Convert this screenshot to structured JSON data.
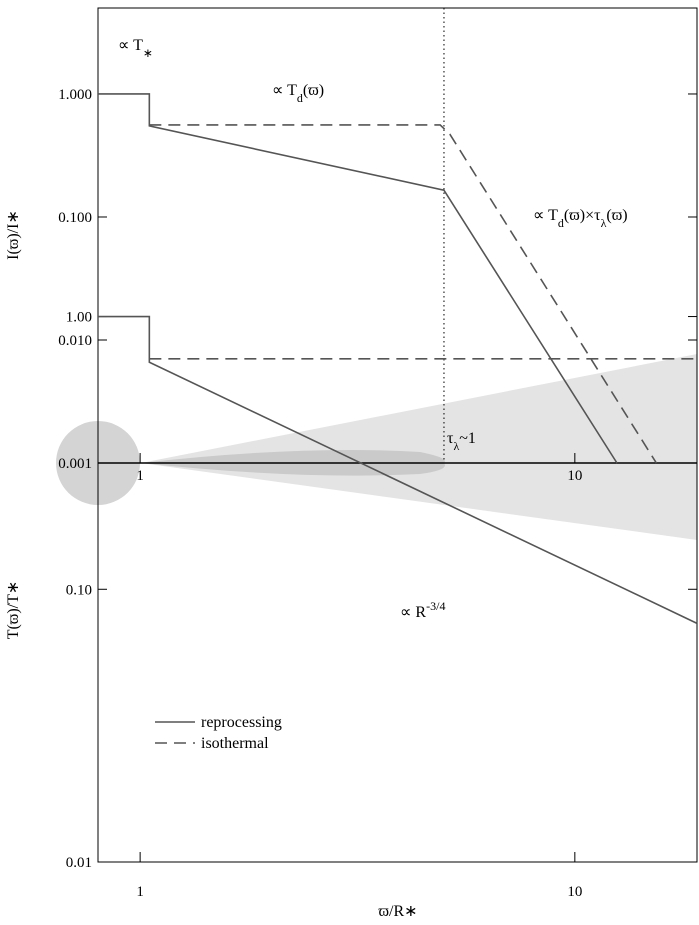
{
  "chart_data": [
    {
      "type": "line",
      "ylabel": "I(ϖ)/I∗",
      "xscale": "log",
      "yscale": "log",
      "xlim": [
        0.8,
        19.1
      ],
      "ylim": [
        0.001,
        5
      ],
      "xticks": [
        1,
        10
      ],
      "yticks": [
        {
          "value": 1,
          "label": "1.000"
        },
        {
          "value": 0.1,
          "label": "0.100"
        },
        {
          "value": 0.01,
          "label": "0.010"
        },
        {
          "value": 0.001,
          "label": "0.001"
        }
      ],
      "vlines": [
        5
      ],
      "series": [
        {
          "color": "#555555",
          "style": "solid",
          "x": [
            0.8,
            1.05,
            1.05,
            5,
            12.5
          ],
          "values": [
            1,
            1,
            0.55,
            0.165,
            0.001
          ]
        },
        {
          "color": "#555555",
          "style": "dashed",
          "x": [
            1.05,
            4.9,
            5.16,
            15.4
          ],
          "values": [
            0.56,
            0.56,
            0.47,
            0.001
          ]
        }
      ],
      "annotations": [
        {
          "parts": [
            {
              "text": "∝ T"
            },
            {
              "text": "∗",
              "sub": true
            }
          ]
        },
        {
          "parts": [
            {
              "text": "∝ T"
            },
            {
              "text": "d",
              "sub": true
            },
            {
              "text": "(ϖ)"
            }
          ]
        },
        {
          "parts": [
            {
              "text": "∝ T"
            },
            {
              "text": "d",
              "sub": true
            },
            {
              "text": "(ϖ)×τ"
            },
            {
              "text": "λ",
              "sub": true
            },
            {
              "text": "(ϖ)"
            }
          ]
        },
        {
          "parts": [
            {
              "text": "τ"
            },
            {
              "text": "λ",
              "sub": true
            },
            {
              "text": "~1"
            }
          ]
        }
      ]
    },
    {
      "type": "line",
      "xlabel": "ϖ/R∗",
      "ylabel": "T(ϖ)/T∗",
      "xscale": "log",
      "yscale": "log",
      "xlim": [
        0.8,
        19.1
      ],
      "ylim": [
        0.01,
        1.15
      ],
      "xticks": [
        1,
        10
      ],
      "yticks": [
        {
          "value": 1,
          "label": "1.00"
        },
        {
          "value": 0.1,
          "label": "0.10"
        },
        {
          "value": 0.01,
          "label": "0.01"
        }
      ],
      "series": [
        {
          "name": "reprocessing",
          "color": "#555555",
          "style": "solid",
          "x": [
            0.8,
            1.05,
            1.05,
            19.1
          ],
          "values": [
            1,
            1,
            0.68,
            0.075
          ]
        },
        {
          "name": "isothermal",
          "color": "#555555",
          "style": "dashed",
          "x": [
            1.05,
            19.1
          ],
          "values": [
            0.7,
            0.7
          ]
        }
      ],
      "annotations": [
        {
          "parts": [
            {
              "text": "∝ R"
            },
            {
              "text": "-3/4",
              "sup": true
            }
          ]
        }
      ]
    }
  ]
}
